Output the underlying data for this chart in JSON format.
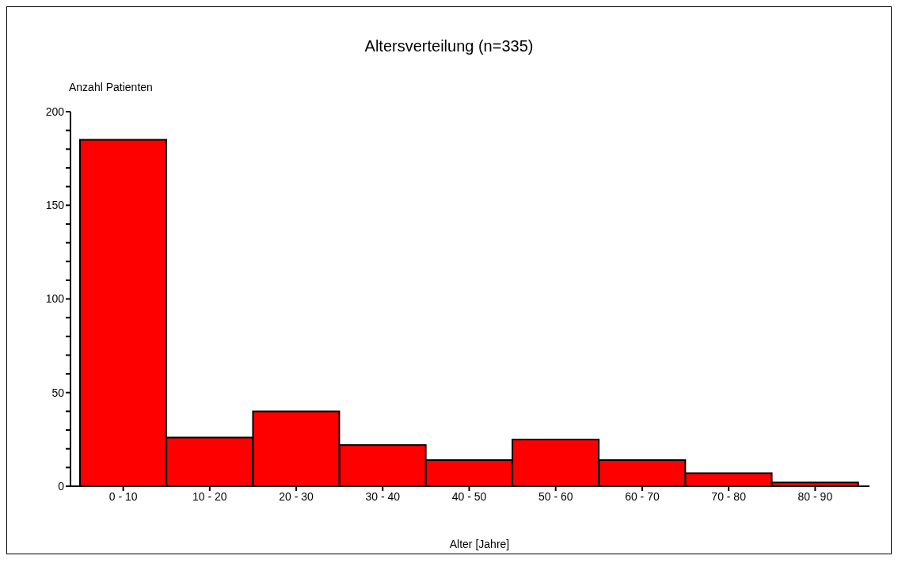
{
  "chart_data": {
    "type": "bar",
    "title": "Altersverteilung (n=335)",
    "xlabel": "Alter [Jahre]",
    "ylabel": "Anzahl Patienten",
    "categories": [
      "0 - 10",
      "10 - 20",
      "20 - 30",
      "30 - 40",
      "40 - 50",
      "50 - 60",
      "60 - 70",
      "70 - 80",
      "80 - 90"
    ],
    "values": [
      185,
      26,
      40,
      22,
      14,
      25,
      14,
      7,
      2
    ],
    "color": "#ff0000",
    "ylim": [
      0,
      200
    ],
    "yticks": [
      0,
      {
        "value": 10,
        "label": null
      },
      {
        "value": 20,
        "label": null
      },
      {
        "value": 30,
        "label": null
      },
      {
        "value": 40,
        "label": null
      },
      50,
      {
        "value": 60,
        "label": null
      },
      {
        "value": 70,
        "label": null
      },
      {
        "value": 80,
        "label": null
      },
      {
        "value": 90,
        "label": null
      },
      100,
      {
        "value": 110,
        "label": null
      },
      {
        "value": 120,
        "label": null
      },
      {
        "value": 130,
        "label": null
      },
      {
        "value": 140,
        "label": null
      },
      150,
      {
        "value": 160,
        "label": null
      },
      {
        "value": 170,
        "label": null
      },
      {
        "value": 180,
        "label": null
      },
      {
        "value": 190,
        "label": null
      },
      200
    ]
  }
}
